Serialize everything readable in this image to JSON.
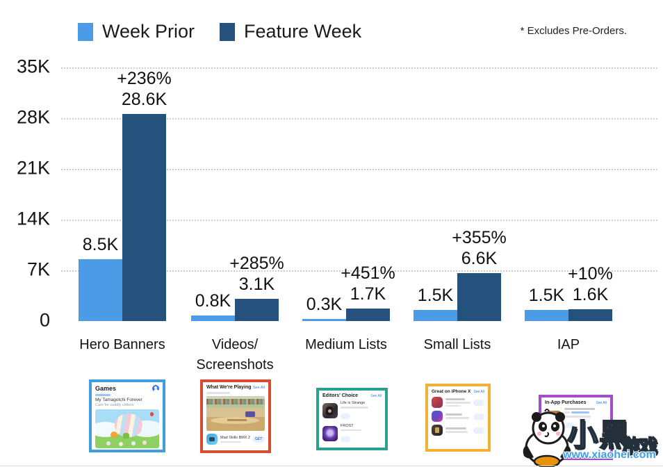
{
  "legend": {
    "items": [
      {
        "label": "Week Prior",
        "color": "#4c9be6"
      },
      {
        "label": "Feature Week",
        "color": "#24527c"
      }
    ]
  },
  "note": "* Excludes Pre-Orders.",
  "chart_data": {
    "type": "bar",
    "title": "",
    "xlabel": "",
    "ylabel": "",
    "categories": [
      "Hero Banners",
      "Videos/\nScreenshots",
      "Medium Lists",
      "Small Lists",
      "IAP"
    ],
    "series": [
      {
        "name": "Week Prior",
        "color": "#4c9be6",
        "values": [
          8500,
          800,
          300,
          1500,
          1500
        ],
        "value_labels": [
          "8.5K",
          "0.8K",
          "0.3K",
          "1.5K",
          "1.5K"
        ]
      },
      {
        "name": "Feature Week",
        "color": "#24527c",
        "values": [
          28600,
          3100,
          1700,
          6600,
          1600
        ],
        "value_labels": [
          "28.6K",
          "3.1K",
          "1.7K",
          "6.6K",
          "1.6K"
        ]
      }
    ],
    "percent_change_labels": [
      "+236%",
      "+285%",
      "+451%",
      "+355%",
      "+10%"
    ],
    "y_ticks": [
      {
        "label": "0",
        "value": 0
      },
      {
        "label": "7K",
        "value": 7000
      },
      {
        "label": "14K",
        "value": 14000
      },
      {
        "label": "21K",
        "value": 21000
      },
      {
        "label": "28K",
        "value": 28000
      },
      {
        "label": "35K",
        "value": 35000
      }
    ],
    "ylim": [
      0,
      35000
    ],
    "grid": "horizontal-dotted",
    "legend_position": "top-left"
  },
  "thumbnails": {
    "games_card": {
      "border_color": "#3f9ede",
      "header": "Games",
      "app_title": "My Tamagotchi Forever",
      "app_subtitle": "Care for cuddly critters"
    },
    "video_card": {
      "border_color": "#d74b2e",
      "header": "What We're Playing",
      "see_all": "See All",
      "app_title": "Mad Skills BMX 2",
      "button_label": "GET"
    },
    "editors_card": {
      "border_color": "#2aa18f",
      "header": "Editors' Choice",
      "see_all": "See All",
      "apps": [
        {
          "title": "Life is Strange"
        },
        {
          "title": "FROST"
        }
      ]
    },
    "iphonex_card": {
      "border_color": "#f2b134",
      "header": "Great on iPhone X",
      "see_all": "See All"
    },
    "iap_card": {
      "border_color": "#a04fc4",
      "header": "In-App Purchases",
      "see_all": "See All"
    }
  },
  "watermark": {
    "brand_main": "小黑",
    "brand_sub": "游戏",
    "url": "www.xiaohei.com"
  }
}
